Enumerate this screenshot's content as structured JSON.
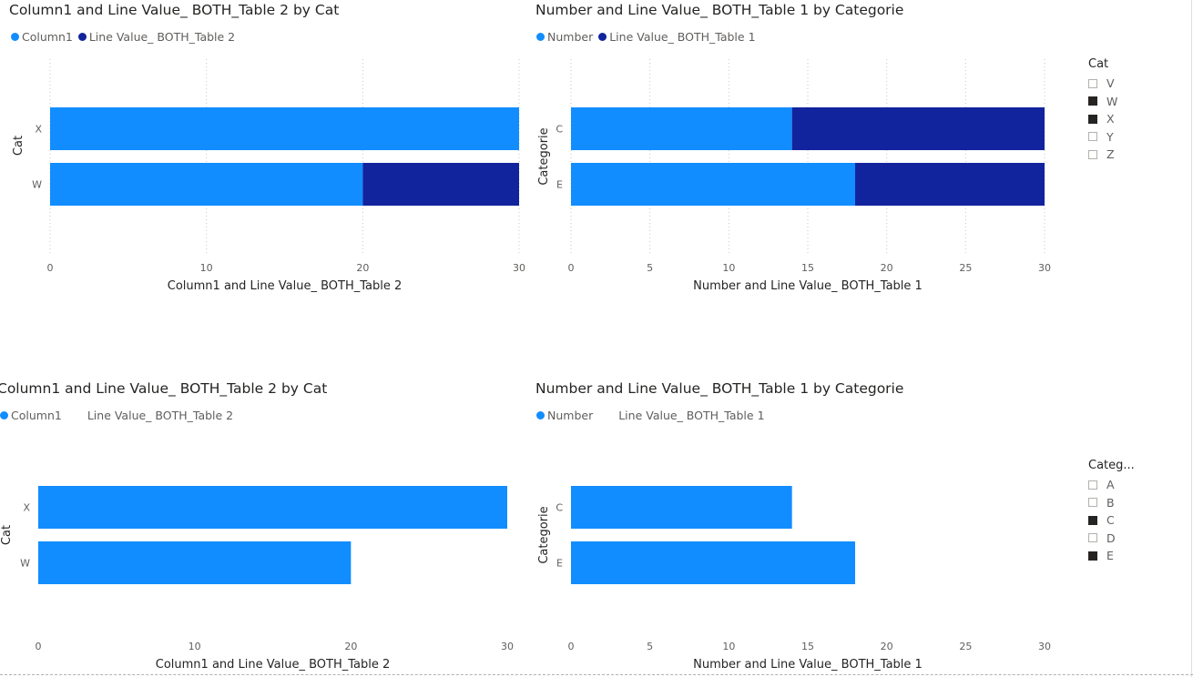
{
  "colors": {
    "primary": "#118DFF",
    "secondary": "#12239E",
    "axis_text": "#605e5c",
    "grid": "#c8c6c4"
  },
  "visuals": [
    {
      "title": "Column1 and Line Value_ BOTH_Table 2 by Cat",
      "legend": [
        {
          "label": "Column1",
          "dot": true
        },
        {
          "label": "Line Value_ BOTH_Table 2",
          "dot": true
        }
      ]
    },
    {
      "title": "Number and Line Value_ BOTH_Table 1 by Categorie",
      "legend": [
        {
          "label": "Number",
          "dot": true
        },
        {
          "label": "Line Value_ BOTH_Table 1",
          "dot": true
        }
      ]
    },
    {
      "title": "Column1 and Line Value_ BOTH_Table 2 by Cat",
      "legend": [
        {
          "label": "Column1",
          "dot": true
        },
        {
          "label": "Line Value_ BOTH_Table 2",
          "dot": false
        }
      ]
    },
    {
      "title": "Number and Line Value_ BOTH_Table 1 by Categorie",
      "legend": [
        {
          "label": "Number",
          "dot": true
        },
        {
          "label": "Line Value_ BOTH_Table 1",
          "dot": false
        }
      ]
    }
  ],
  "chart_data": [
    {
      "type": "bar",
      "orientation": "horizontal",
      "stacked": true,
      "title": "Column1 and Line Value_ BOTH_Table 2 by Cat",
      "categories": [
        "X",
        "W"
      ],
      "series": [
        {
          "name": "Column1",
          "values": [
            30,
            20
          ]
        },
        {
          "name": "Line Value_ BOTH_Table 2",
          "values": [
            0,
            10
          ]
        }
      ],
      "xlabel": "Column1 and Line Value_ BOTH_Table 2",
      "ylabel": "Cat",
      "xlim": [
        0,
        30
      ],
      "xticks": [
        0,
        10,
        20,
        30
      ],
      "grid": true,
      "legend": "top-left"
    },
    {
      "type": "bar",
      "orientation": "horizontal",
      "stacked": true,
      "title": "Number and Line Value_ BOTH_Table 1 by Categorie",
      "categories": [
        "C",
        "E"
      ],
      "series": [
        {
          "name": "Number",
          "values": [
            14,
            18
          ]
        },
        {
          "name": "Line Value_ BOTH_Table 1",
          "values": [
            16,
            12
          ]
        }
      ],
      "xlabel": "Number and Line Value_ BOTH_Table 1",
      "ylabel": "Categorie",
      "xlim": [
        0,
        30
      ],
      "xticks": [
        0,
        5,
        10,
        15,
        20,
        25,
        30
      ],
      "grid": true,
      "legend": "top-left"
    },
    {
      "type": "bar",
      "orientation": "horizontal",
      "stacked": true,
      "title": "Column1 and Line Value_ BOTH_Table 2 by Cat",
      "categories": [
        "X",
        "W"
      ],
      "series": [
        {
          "name": "Column1",
          "values": [
            30,
            20
          ]
        }
      ],
      "xlabel": "Column1 and Line Value_ BOTH_Table 2",
      "ylabel": "Cat",
      "xlim": [
        0,
        30
      ],
      "xticks": [
        0,
        10,
        20,
        30
      ],
      "grid": false,
      "legend": "top-left"
    },
    {
      "type": "bar",
      "orientation": "horizontal",
      "stacked": true,
      "title": "Number and Line Value_ BOTH_Table 1 by Categorie",
      "categories": [
        "C",
        "E"
      ],
      "series": [
        {
          "name": "Number",
          "values": [
            14,
            18
          ]
        }
      ],
      "xlabel": "Number and Line Value_ BOTH_Table 1",
      "ylabel": "Categorie",
      "xlim": [
        0,
        30
      ],
      "xticks": [
        0,
        5,
        10,
        15,
        20,
        25,
        30
      ],
      "grid": false,
      "legend": "top-left"
    }
  ],
  "slicers": [
    {
      "title": "Cat",
      "items": [
        {
          "label": "V",
          "selected": false
        },
        {
          "label": "W",
          "selected": true
        },
        {
          "label": "X",
          "selected": true
        },
        {
          "label": "Y",
          "selected": false
        },
        {
          "label": "Z",
          "selected": false
        }
      ]
    },
    {
      "title": "Categ...",
      "items": [
        {
          "label": "A",
          "selected": false
        },
        {
          "label": "B",
          "selected": false
        },
        {
          "label": "C",
          "selected": true
        },
        {
          "label": "D",
          "selected": false
        },
        {
          "label": "E",
          "selected": true
        }
      ]
    }
  ]
}
